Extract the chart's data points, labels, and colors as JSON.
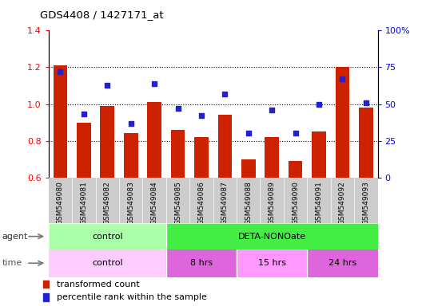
{
  "title": "GDS4408 / 1427171_at",
  "samples": [
    "GSM549080",
    "GSM549081",
    "GSM549082",
    "GSM549083",
    "GSM549084",
    "GSM549085",
    "GSM549086",
    "GSM549087",
    "GSM549088",
    "GSM549089",
    "GSM549090",
    "GSM549091",
    "GSM549092",
    "GSM549093"
  ],
  "bar_values": [
    1.21,
    0.9,
    0.99,
    0.84,
    1.01,
    0.86,
    0.82,
    0.94,
    0.7,
    0.82,
    0.69,
    0.85,
    1.2,
    0.98
  ],
  "dot_values": [
    72,
    43,
    63,
    37,
    64,
    47,
    42,
    57,
    30,
    46,
    30,
    50,
    67,
    51
  ],
  "ymin": 0.6,
  "ymax": 1.4,
  "yticks_left": [
    0.6,
    0.8,
    1.0,
    1.2,
    1.4
  ],
  "yticks_right": [
    0,
    25,
    50,
    75,
    100
  ],
  "ytick_labels_right": [
    "0",
    "25",
    "50",
    "75",
    "100%"
  ],
  "bar_color": "#CC2200",
  "dot_color": "#2222CC",
  "agent_groups": [
    {
      "label": "control",
      "start": 0,
      "end": 5,
      "color": "#AAFFAA"
    },
    {
      "label": "DETA-NONOate",
      "start": 5,
      "end": 14,
      "color": "#44EE44"
    }
  ],
  "time_groups": [
    {
      "label": "control",
      "start": 0,
      "end": 5,
      "color": "#FFCCFF"
    },
    {
      "label": "8 hrs",
      "start": 5,
      "end": 8,
      "color": "#DD66DD"
    },
    {
      "label": "15 hrs",
      "start": 8,
      "end": 11,
      "color": "#FF99FF"
    },
    {
      "label": "24 hrs",
      "start": 11,
      "end": 14,
      "color": "#DD66DD"
    }
  ],
  "legend_bar_label": "transformed count",
  "legend_dot_label": "percentile rank within the sample"
}
